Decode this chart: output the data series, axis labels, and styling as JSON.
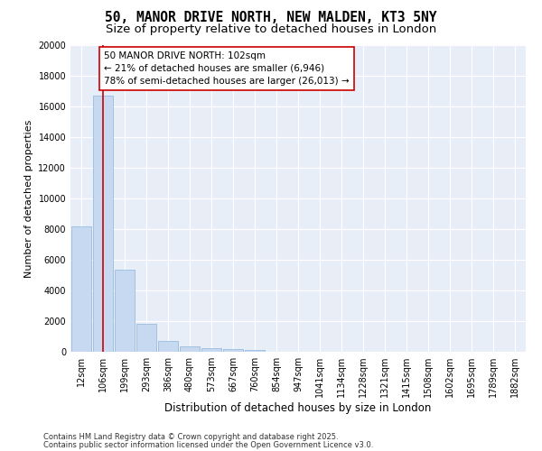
{
  "title1": "50, MANOR DRIVE NORTH, NEW MALDEN, KT3 5NY",
  "title2": "Size of property relative to detached houses in London",
  "xlabel": "Distribution of detached houses by size in London",
  "ylabel": "Number of detached properties",
  "bar_color": "#c6d9f0",
  "bar_edge_color": "#8ab4d8",
  "categories": [
    "12sqm",
    "106sqm",
    "199sqm",
    "293sqm",
    "386sqm",
    "480sqm",
    "573sqm",
    "667sqm",
    "760sqm",
    "854sqm",
    "947sqm",
    "1041sqm",
    "1134sqm",
    "1228sqm",
    "1321sqm",
    "1415sqm",
    "1508sqm",
    "1602sqm",
    "1695sqm",
    "1789sqm",
    "1882sqm"
  ],
  "values": [
    8200,
    16700,
    5350,
    1850,
    700,
    350,
    220,
    160,
    110,
    0,
    0,
    0,
    0,
    0,
    0,
    0,
    0,
    0,
    0,
    0,
    0
  ],
  "ylim": [
    0,
    20000
  ],
  "yticks": [
    0,
    2000,
    4000,
    6000,
    8000,
    10000,
    12000,
    14000,
    16000,
    18000,
    20000
  ],
  "vline_x": 1,
  "vline_color": "#cc0000",
  "annotation_text": "50 MANOR DRIVE NORTH: 102sqm\n← 21% of detached houses are smaller (6,946)\n78% of semi-detached houses are larger (26,013) →",
  "annotation_box_color": "#cc0000",
  "footer1": "Contains HM Land Registry data © Crown copyright and database right 2025.",
  "footer2": "Contains public sector information licensed under the Open Government Licence v3.0.",
  "background_color": "#ffffff",
  "plot_bg_color": "#e8eef8",
  "grid_color": "#ffffff",
  "title_fontsize": 10.5,
  "subtitle_fontsize": 9.5,
  "tick_fontsize": 7,
  "ylabel_fontsize": 8,
  "xlabel_fontsize": 8.5,
  "footer_fontsize": 6,
  "annotation_fontsize": 7.5
}
